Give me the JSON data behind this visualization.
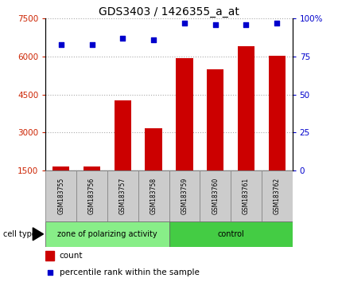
{
  "title": "GDS3403 / 1426355_a_at",
  "samples": [
    "GSM183755",
    "GSM183756",
    "GSM183757",
    "GSM183758",
    "GSM183759",
    "GSM183760",
    "GSM183761",
    "GSM183762"
  ],
  "counts": [
    1650,
    1670,
    4280,
    3180,
    5940,
    5500,
    6400,
    6020
  ],
  "percentile_ranks": [
    83,
    83,
    87,
    86,
    97,
    96,
    96,
    97
  ],
  "ylim_left": [
    1500,
    7500
  ],
  "yticks_left": [
    1500,
    3000,
    4500,
    6000,
    7500
  ],
  "ylim_right": [
    0,
    100
  ],
  "yticks_right": [
    0,
    25,
    50,
    75,
    100
  ],
  "bar_color": "#cc0000",
  "dot_color": "#0000cc",
  "left_tick_color": "#cc2200",
  "right_tick_color": "#0000cc",
  "grid_color": "#aaaaaa",
  "group1_label": "zone of polarizing activity",
  "group2_label": "control",
  "group1_color": "#88ee88",
  "group2_color": "#44cc44",
  "group1_indices": [
    0,
    1,
    2,
    3
  ],
  "group2_indices": [
    4,
    5,
    6,
    7
  ],
  "cell_type_label": "cell type",
  "legend_count_label": "count",
  "legend_pct_label": "percentile rank within the sample",
  "bg_color": "#cccccc",
  "bar_width": 0.55,
  "title_fontsize": 10,
  "tick_fontsize": 7.5
}
